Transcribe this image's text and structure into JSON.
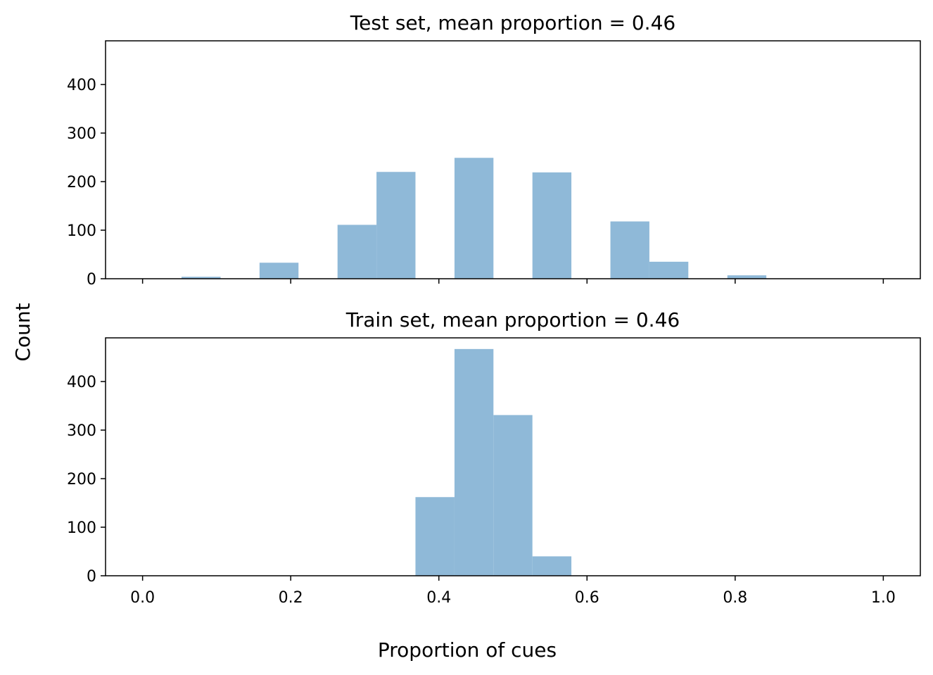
{
  "figure": {
    "ylabel": "Count",
    "xlabel": "Proportion of cues",
    "bar_color": "#8fb9d8"
  },
  "chart_data": [
    {
      "type": "bar",
      "title": "Test set, mean proportion = 0.46",
      "xlim": [
        -0.05,
        1.05
      ],
      "ylim": [
        0,
        490
      ],
      "xticks": [
        "0.0",
        "0.2",
        "0.4",
        "0.6",
        "0.8",
        "1.0"
      ],
      "x_tick_values": [
        0.0,
        0.2,
        0.4,
        0.6,
        0.8,
        1.0
      ],
      "yticks": [
        "0",
        "100",
        "200",
        "300",
        "400"
      ],
      "y_tick_values": [
        0,
        100,
        200,
        300,
        400
      ],
      "show_x_tick_labels": false,
      "bins": [
        {
          "start": 0.0526,
          "end": 0.1053,
          "count": 4
        },
        {
          "start": 0.1579,
          "end": 0.2105,
          "count": 33
        },
        {
          "start": 0.2632,
          "end": 0.3158,
          "count": 111
        },
        {
          "start": 0.3158,
          "end": 0.3684,
          "count": 220
        },
        {
          "start": 0.4211,
          "end": 0.4737,
          "count": 249
        },
        {
          "start": 0.5263,
          "end": 0.5789,
          "count": 219
        },
        {
          "start": 0.6316,
          "end": 0.6842,
          "count": 118
        },
        {
          "start": 0.6842,
          "end": 0.7368,
          "count": 35
        },
        {
          "start": 0.7895,
          "end": 0.8421,
          "count": 7
        }
      ]
    },
    {
      "type": "bar",
      "title": "Train set, mean proportion = 0.46",
      "xlim": [
        -0.05,
        1.05
      ],
      "ylim": [
        0,
        490
      ],
      "xticks": [
        "0.0",
        "0.2",
        "0.4",
        "0.6",
        "0.8",
        "1.0"
      ],
      "x_tick_values": [
        0.0,
        0.2,
        0.4,
        0.6,
        0.8,
        1.0
      ],
      "yticks": [
        "0",
        "100",
        "200",
        "300",
        "400"
      ],
      "y_tick_values": [
        0,
        100,
        200,
        300,
        400
      ],
      "show_x_tick_labels": true,
      "bins": [
        {
          "start": 0.3684,
          "end": 0.4211,
          "count": 162
        },
        {
          "start": 0.4211,
          "end": 0.4737,
          "count": 467
        },
        {
          "start": 0.4737,
          "end": 0.5263,
          "count": 331
        },
        {
          "start": 0.5263,
          "end": 0.5789,
          "count": 40
        }
      ]
    }
  ]
}
